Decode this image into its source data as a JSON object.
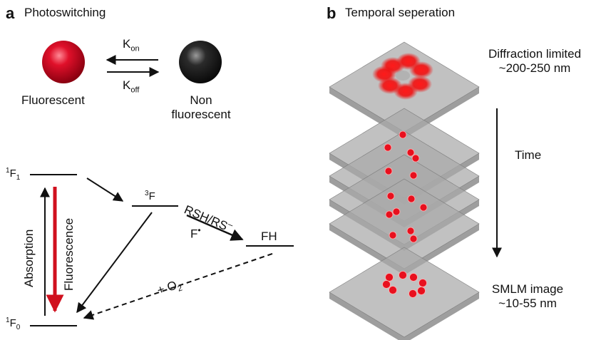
{
  "panel_a": {
    "letter": "a",
    "title": "Photoswitching",
    "fluorescent": "Fluorescent",
    "non_fluorescent_line1": "Non",
    "non_fluorescent_line2": "fluorescent",
    "k_on_base": "K",
    "k_on_sub": "on",
    "k_off_base": "K",
    "k_off_sub": "off",
    "colors": {
      "fluorescent_sphere": "#e0102a",
      "dark_sphere": "#2b2b2b",
      "fluorescence_arrow": "#d0101e"
    }
  },
  "jablonski": {
    "s1_sup": "1",
    "s1_base": "F",
    "s1_sub": "1",
    "s0_sup": "1",
    "s0_base": "F",
    "s0_sub": "0",
    "triplet_sup": "3",
    "triplet_base": "F",
    "reductant": "RSH/RS",
    "reductant_sup": "–",
    "radical": "F",
    "radical_dot": "•",
    "product": "FH",
    "absorption": "Absorption",
    "fluorescence": "Fluorescence",
    "oxygen_prefix": "+ O",
    "oxygen_sub": "2"
  },
  "panel_b": {
    "letter": "b",
    "title": "Temporal seperation",
    "diffraction_line1": "Diffraction limited",
    "diffraction_line2": "~200-250 nm",
    "time": "Time",
    "smlm_line1": "SMLM image",
    "smlm_line2": "~10-55 nm",
    "colors": {
      "plane": "#a9a9a9",
      "plane_edge": "#7c7c7c",
      "molecule": "#e8101e"
    }
  }
}
